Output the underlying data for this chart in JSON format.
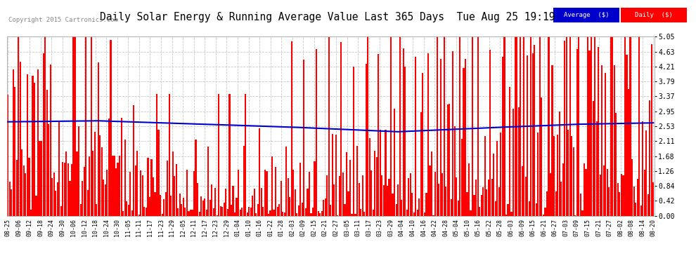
{
  "title": "Daily Solar Energy & Running Average Value Last 365 Days  Tue Aug 25 19:19",
  "copyright": "Copyright 2015 Cartronics.com",
  "ylabel_right": [
    "0.00",
    "0.42",
    "0.84",
    "1.26",
    "1.68",
    "2.11",
    "2.53",
    "2.95",
    "3.37",
    "3.79",
    "4.21",
    "4.63",
    "5.05"
  ],
  "ymax": 5.05,
  "ymin": 0.0,
  "background_color": "#ffffff",
  "plot_bg_color": "#ffffff",
  "grid_color": "#c8c8c8",
  "bar_color": "#ff0000",
  "avg_line_color": "#0000cc",
  "title_fontsize": 11,
  "x_tick_labels": [
    "08-25",
    "09-06",
    "09-12",
    "09-18",
    "09-24",
    "09-30",
    "10-06",
    "10-12",
    "10-18",
    "10-24",
    "10-30",
    "11-05",
    "11-11",
    "11-17",
    "11-23",
    "11-29",
    "12-05",
    "12-11",
    "12-17",
    "12-23",
    "12-29",
    "01-04",
    "01-10",
    "01-16",
    "01-22",
    "01-28",
    "02-03",
    "02-09",
    "02-15",
    "02-21",
    "02-27",
    "03-05",
    "03-11",
    "03-17",
    "03-23",
    "03-29",
    "04-04",
    "04-10",
    "04-16",
    "04-22",
    "04-28",
    "05-04",
    "05-10",
    "05-16",
    "05-22",
    "05-28",
    "06-03",
    "06-09",
    "06-15",
    "06-21",
    "06-27",
    "07-03",
    "07-09",
    "07-15",
    "07-21",
    "07-27",
    "08-02",
    "08-08",
    "08-14",
    "08-20"
  ],
  "num_bars": 365
}
